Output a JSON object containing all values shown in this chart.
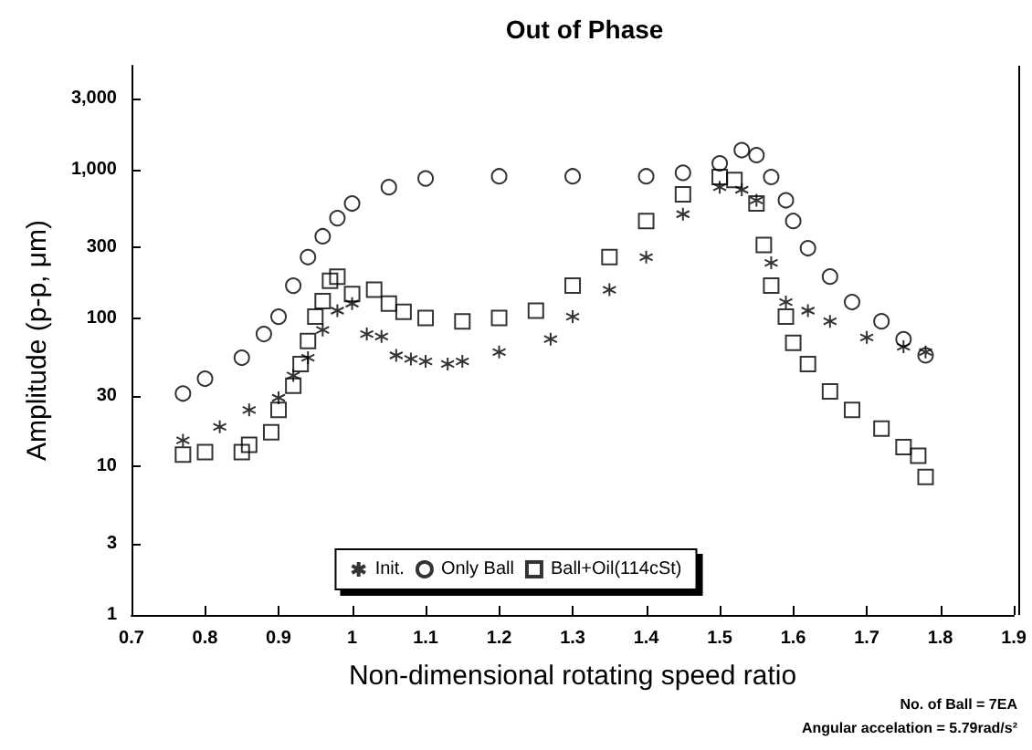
{
  "chart_data": {
    "type": "scatter",
    "title": "Out of Phase",
    "xlabel": "Non-dimensional rotating speed ratio",
    "ylabel": "Amplitude (p-p, μm)",
    "log": "y",
    "grid": false,
    "legend": "bottom",
    "xlim": [
      0.7,
      1.9
    ],
    "xticks": [
      0.7,
      0.8,
      0.9,
      1,
      1.1,
      1.2,
      1.3,
      1.4,
      1.5,
      1.6,
      1.7,
      1.8,
      1.9
    ],
    "ylim": [
      1,
      5000
    ],
    "yticks": [
      1,
      3,
      10,
      30,
      100,
      300,
      {
        "value": 1000,
        "label": "1,000"
      },
      {
        "value": 3000,
        "label": "3,000"
      }
    ],
    "annotations": [
      "No. of Ball = 7EA",
      "Angular accelation = 5.79rad/s²"
    ],
    "series": [
      {
        "name": "Init.",
        "color": "#000000",
        "marker": "cross",
        "x": [
          0.77,
          0.82,
          0.86,
          0.9,
          0.92,
          0.94,
          0.96,
          0.98,
          1.0,
          1.02,
          1.04,
          1.06,
          1.08,
          1.1,
          1.13,
          1.15,
          1.2,
          1.27,
          1.3,
          1.35,
          1.4,
          1.45,
          1.5,
          1.53,
          1.55,
          1.57,
          1.59,
          1.62,
          1.65,
          1.7,
          1.75,
          1.78
        ],
        "values": [
          15,
          18.5,
          24,
          29,
          41,
          54,
          83,
          112,
          125,
          78,
          75,
          56,
          53,
          51,
          49,
          51,
          59,
          72,
          102,
          155,
          257,
          500,
          760,
          730,
          620,
          235,
          128,
          112,
          95,
          74,
          64,
          59
        ]
      },
      {
        "name": "Only Ball",
        "color": "#000000",
        "marker": "circle",
        "x": [
          0.77,
          0.8,
          0.85,
          0.88,
          0.9,
          0.92,
          0.94,
          0.96,
          0.98,
          1.0,
          1.05,
          1.1,
          1.2,
          1.3,
          1.4,
          1.45,
          1.5,
          1.53,
          1.55,
          1.57,
          1.59,
          1.6,
          1.62,
          1.65,
          1.68,
          1.72,
          1.75,
          1.78
        ],
        "values": [
          31,
          39,
          54,
          78,
          102,
          165,
          257,
          355,
          470,
          590,
          760,
          870,
          900,
          900,
          900,
          950,
          1100,
          1350,
          1250,
          890,
          620,
          450,
          295,
          190,
          128,
          95,
          72,
          56
        ]
      },
      {
        "name": "Ball+Oil(114cSt)",
        "color": "#000000",
        "marker": "square",
        "x": [
          0.77,
          0.8,
          0.85,
          0.86,
          0.89,
          0.9,
          0.92,
          0.93,
          0.94,
          0.95,
          0.96,
          0.97,
          0.98,
          1.0,
          1.03,
          1.05,
          1.07,
          1.1,
          1.15,
          1.2,
          1.25,
          1.3,
          1.35,
          1.4,
          1.45,
          1.5,
          1.52,
          1.55,
          1.56,
          1.57,
          1.59,
          1.6,
          1.62,
          1.65,
          1.68,
          1.72,
          1.75,
          1.77,
          1.78
        ],
        "values": [
          12,
          12.5,
          12.5,
          14,
          17,
          24,
          35,
          49,
          70,
          102,
          130,
          178,
          190,
          145,
          155,
          125,
          110,
          100,
          95,
          100,
          112,
          165,
          257,
          450,
          680,
          890,
          850,
          590,
          310,
          165,
          102,
          68,
          49,
          32,
          24,
          18,
          13.5,
          11.8,
          8.5
        ]
      }
    ]
  }
}
